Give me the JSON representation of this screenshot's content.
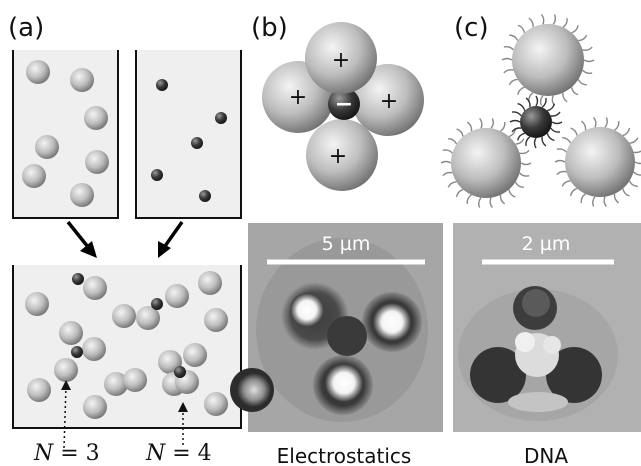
{
  "panels": {
    "a": {
      "label": "(a)"
    },
    "b": {
      "label": "(b)",
      "caption": "Electrostatics",
      "scale_bar": "5 µm",
      "charges": {
        "positive": "+",
        "negative": "−"
      }
    },
    "c": {
      "label": "(c)",
      "caption": "DNA",
      "scale_bar": "2 µm"
    }
  },
  "cluster_labels": {
    "n3": {
      "var": "N",
      "eq": " = ",
      "num": "3"
    },
    "n4": {
      "var": "N",
      "eq": " = ",
      "num": "4"
    }
  },
  "colors": {
    "container_fill": "#efefef",
    "container_stroke": "#111111",
    "arrow": "#000000",
    "large_particle": "#b9b9b9",
    "small_particle": "#333333",
    "dna_strand": "#888888"
  }
}
